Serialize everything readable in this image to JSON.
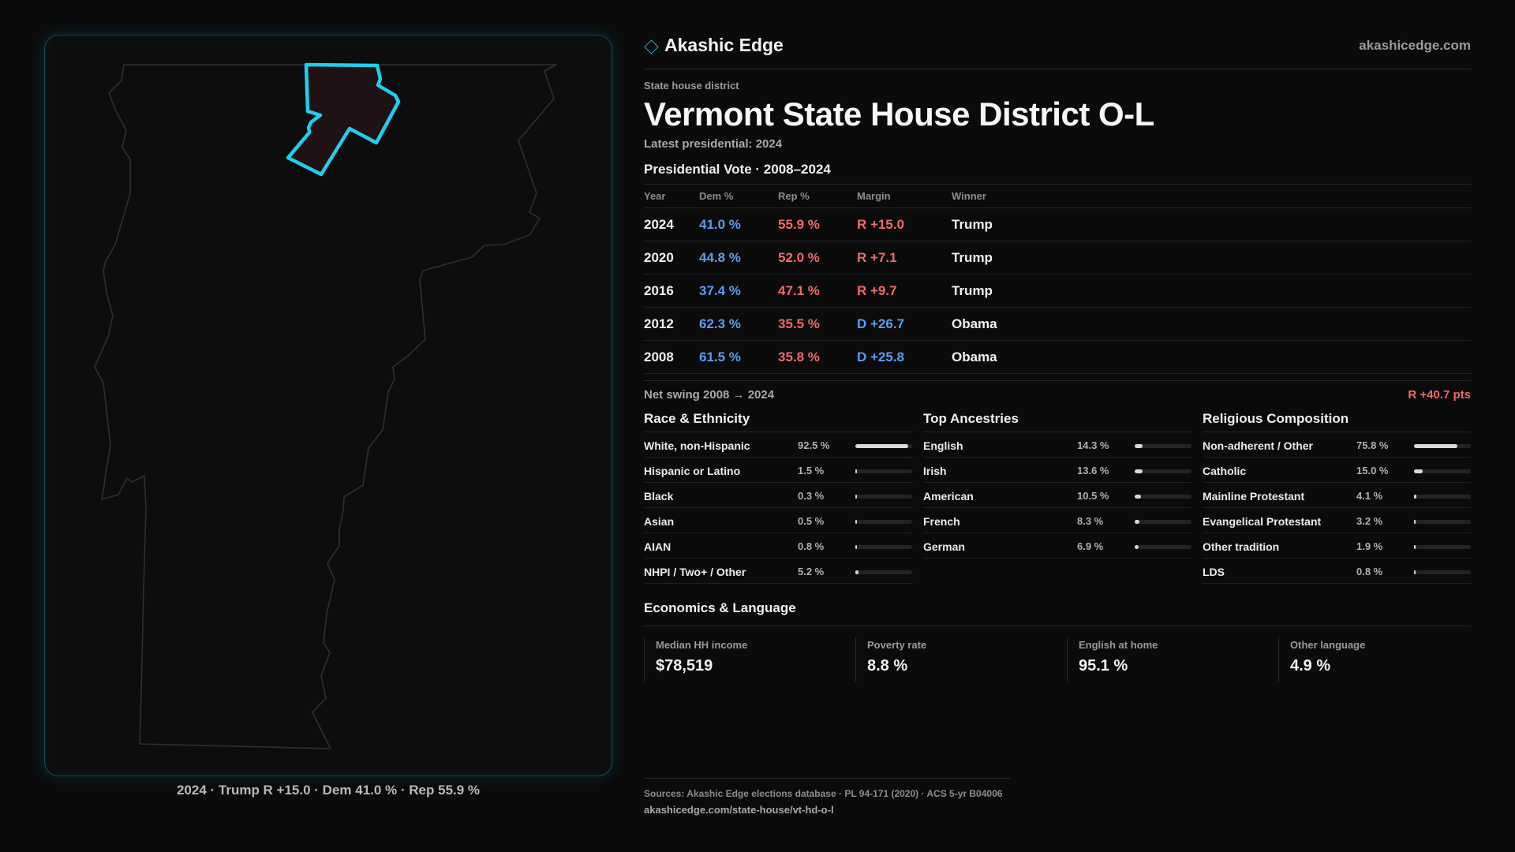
{
  "brand": {
    "name": "Akashic Edge",
    "url": "akashicedge.com"
  },
  "header": {
    "kicker": "State house district",
    "title": "Vermont State House District O-L",
    "subtitle": "Latest presidential: 2024"
  },
  "map": {
    "region": "Vermont",
    "highlight_color": "#1ed0ee",
    "highlight_fill": "#1f1214",
    "caption": "2024 · Trump R +15.0 · Dem 41.0 % · Rep 55.9 %"
  },
  "votes": {
    "title": "Presidential Vote · 2008–2024",
    "headers": [
      "Year",
      "Dem %",
      "Rep %",
      "Margin",
      "Winner"
    ],
    "rows": [
      {
        "year": "2024",
        "dem": "41.0 %",
        "rep": "55.9 %",
        "margin": "R +15.0",
        "party": "R",
        "winner": "Trump"
      },
      {
        "year": "2020",
        "dem": "44.8 %",
        "rep": "52.0 %",
        "margin": "R +7.1",
        "party": "R",
        "winner": "Trump"
      },
      {
        "year": "2016",
        "dem": "37.4 %",
        "rep": "47.1 %",
        "margin": "R +9.7",
        "party": "R",
        "winner": "Trump"
      },
      {
        "year": "2012",
        "dem": "62.3 %",
        "rep": "35.5 %",
        "margin": "D +26.7",
        "party": "D",
        "winner": "Obama"
      },
      {
        "year": "2008",
        "dem": "61.5 %",
        "rep": "35.8 %",
        "margin": "D +25.8",
        "party": "D",
        "winner": "Obama"
      }
    ],
    "swing_label": "Net swing 2008 → 2024",
    "swing_value": "R +40.7 pts"
  },
  "demographics": [
    {
      "title": "Race & Ethnicity",
      "rows": [
        {
          "label": "White, non-Hispanic",
          "value": "92.5 %",
          "pct": 92.5
        },
        {
          "label": "Hispanic or Latino",
          "value": "1.5 %",
          "pct": 1.5
        },
        {
          "label": "Black",
          "value": "0.3 %",
          "pct": 0.3
        },
        {
          "label": "Asian",
          "value": "0.5 %",
          "pct": 0.5
        },
        {
          "label": "AIAN",
          "value": "0.8 %",
          "pct": 0.8
        },
        {
          "label": "NHPI / Two+ / Other",
          "value": "5.2 %",
          "pct": 5.2
        }
      ]
    },
    {
      "title": "Top Ancestries",
      "rows": [
        {
          "label": "English",
          "value": "14.3 %",
          "pct": 14.3
        },
        {
          "label": "Irish",
          "value": "13.6 %",
          "pct": 13.6
        },
        {
          "label": "American",
          "value": "10.5 %",
          "pct": 10.5
        },
        {
          "label": "French",
          "value": "8.3 %",
          "pct": 8.3
        },
        {
          "label": "German",
          "value": "6.9 %",
          "pct": 6.9
        }
      ]
    },
    {
      "title": "Religious Composition",
      "rows": [
        {
          "label": "Non-adherent / Other",
          "value": "75.8 %",
          "pct": 75.8
        },
        {
          "label": "Catholic",
          "value": "15.0 %",
          "pct": 15.0
        },
        {
          "label": "Mainline Protestant",
          "value": "4.1 %",
          "pct": 4.1
        },
        {
          "label": "Evangelical Protestant",
          "value": "3.2 %",
          "pct": 3.2
        },
        {
          "label": "Other tradition",
          "value": "1.9 %",
          "pct": 1.9
        },
        {
          "label": "LDS",
          "value": "0.8 %",
          "pct": 0.8
        }
      ]
    }
  ],
  "economics": {
    "title": "Economics & Language",
    "stats": [
      {
        "label": "Median HH income",
        "value": "$78,519"
      },
      {
        "label": "Poverty rate",
        "value": "8.8 %"
      },
      {
        "label": "English at home",
        "value": "95.1 %"
      },
      {
        "label": "Other language",
        "value": "4.9 %"
      }
    ]
  },
  "sources": {
    "line": "Sources: Akashic Edge elections database · PL 94-171 (2020) · ACS 5-yr B04006",
    "url": "akashicedge.com/state-house/vt-hd-o-l"
  }
}
